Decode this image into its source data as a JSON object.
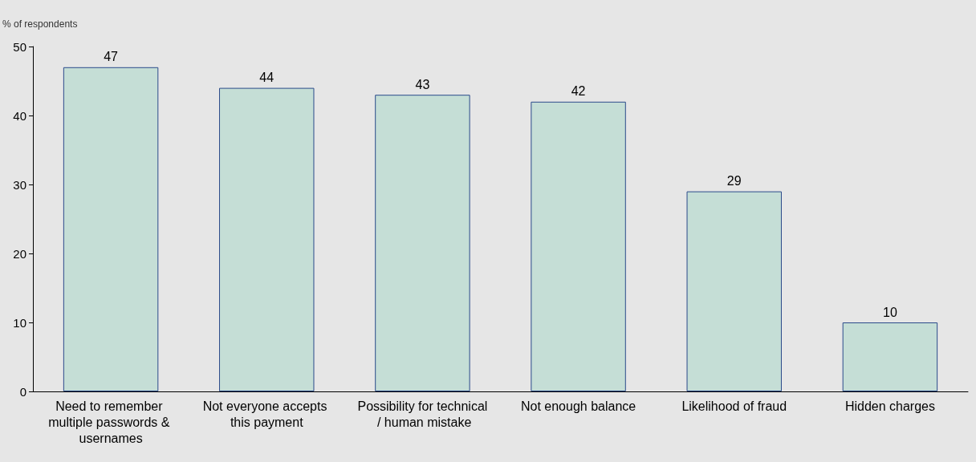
{
  "chart_data": {
    "type": "bar",
    "ylabel": "% of respondents",
    "categories": [
      "Need to remember multiple passwords & usernames",
      "Not everyone accepts this payment",
      "Possibility for technical / human mistake",
      "Not enough balance",
      "Likelihood of fraud",
      "Hidden charges"
    ],
    "values": [
      47,
      44,
      43,
      42,
      29,
      10
    ],
    "color": "#c5ded6",
    "ylim": [
      0,
      50
    ],
    "yticks": [
      0,
      10,
      20,
      30,
      40,
      50
    ],
    "grid": false,
    "data_labels": true
  }
}
